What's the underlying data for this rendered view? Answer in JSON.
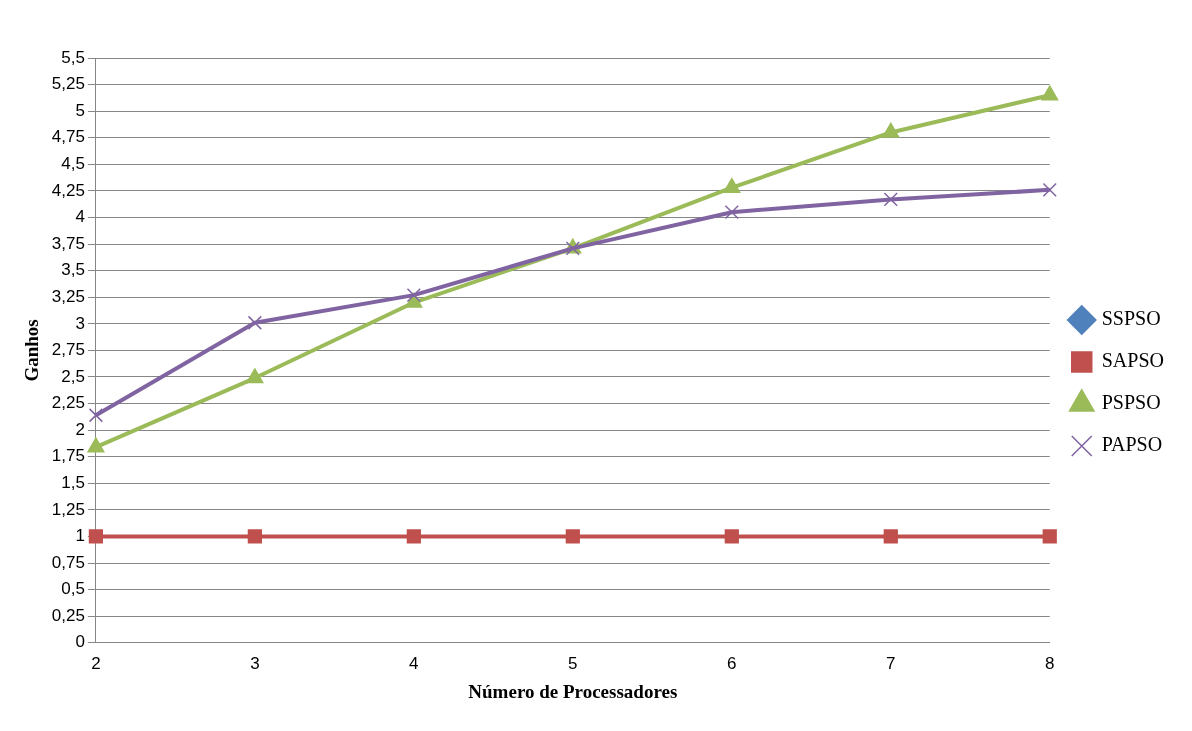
{
  "chart_data": {
    "type": "line",
    "xlabel": "Número de Processadores",
    "ylabel": "Ganhos",
    "categories": [
      "2",
      "3",
      "4",
      "5",
      "6",
      "7",
      "8"
    ],
    "series": [
      {
        "name": "SSPSO",
        "color": "#4f81bd",
        "marker": "diamond",
        "values": [
          null,
          null,
          null,
          null,
          null,
          null,
          null
        ]
      },
      {
        "name": "SAPSO",
        "color": "#c0504d",
        "marker": "square",
        "values": [
          1,
          1,
          1,
          1,
          1,
          1,
          1
        ]
      },
      {
        "name": "PSPSO",
        "color": "#9bbb59",
        "marker": "triangle",
        "values": [
          1.84,
          2.49,
          3.2,
          3.71,
          4.28,
          4.8,
          5.15
        ]
      },
      {
        "name": "PAPSO",
        "color": "#8064a2",
        "marker": "cross",
        "values": [
          2.14,
          3.01,
          3.27,
          3.71,
          4.05,
          4.17,
          4.26
        ]
      }
    ],
    "ylim": [
      0,
      5.5
    ],
    "yticks": [
      {
        "value": 0,
        "label": "0"
      },
      {
        "value": 0.25,
        "label": "0,25"
      },
      {
        "value": 0.5,
        "label": "0,5"
      },
      {
        "value": 0.75,
        "label": "0,75"
      },
      {
        "value": 1,
        "label": "1"
      },
      {
        "value": 1.25,
        "label": "1,25"
      },
      {
        "value": 1.5,
        "label": "1,5"
      },
      {
        "value": 1.75,
        "label": "1,75"
      },
      {
        "value": 2,
        "label": "2"
      },
      {
        "value": 2.25,
        "label": "2,25"
      },
      {
        "value": 2.5,
        "label": "2,5"
      },
      {
        "value": 2.75,
        "label": "2,75"
      },
      {
        "value": 3,
        "label": "3"
      },
      {
        "value": 3.25,
        "label": "3,25"
      },
      {
        "value": 3.5,
        "label": "3,5"
      },
      {
        "value": 3.75,
        "label": "3,75"
      },
      {
        "value": 4,
        "label": "4"
      },
      {
        "value": 4.25,
        "label": "4,25"
      },
      {
        "value": 4.5,
        "label": "4,5"
      },
      {
        "value": 4.75,
        "label": "4,75"
      },
      {
        "value": 5,
        "label": "5"
      },
      {
        "value": 5.25,
        "label": "5,25"
      },
      {
        "value": 5.5,
        "label": "5,5"
      }
    ],
    "grid": "y",
    "legend": "right",
    "line_style": "solid"
  }
}
